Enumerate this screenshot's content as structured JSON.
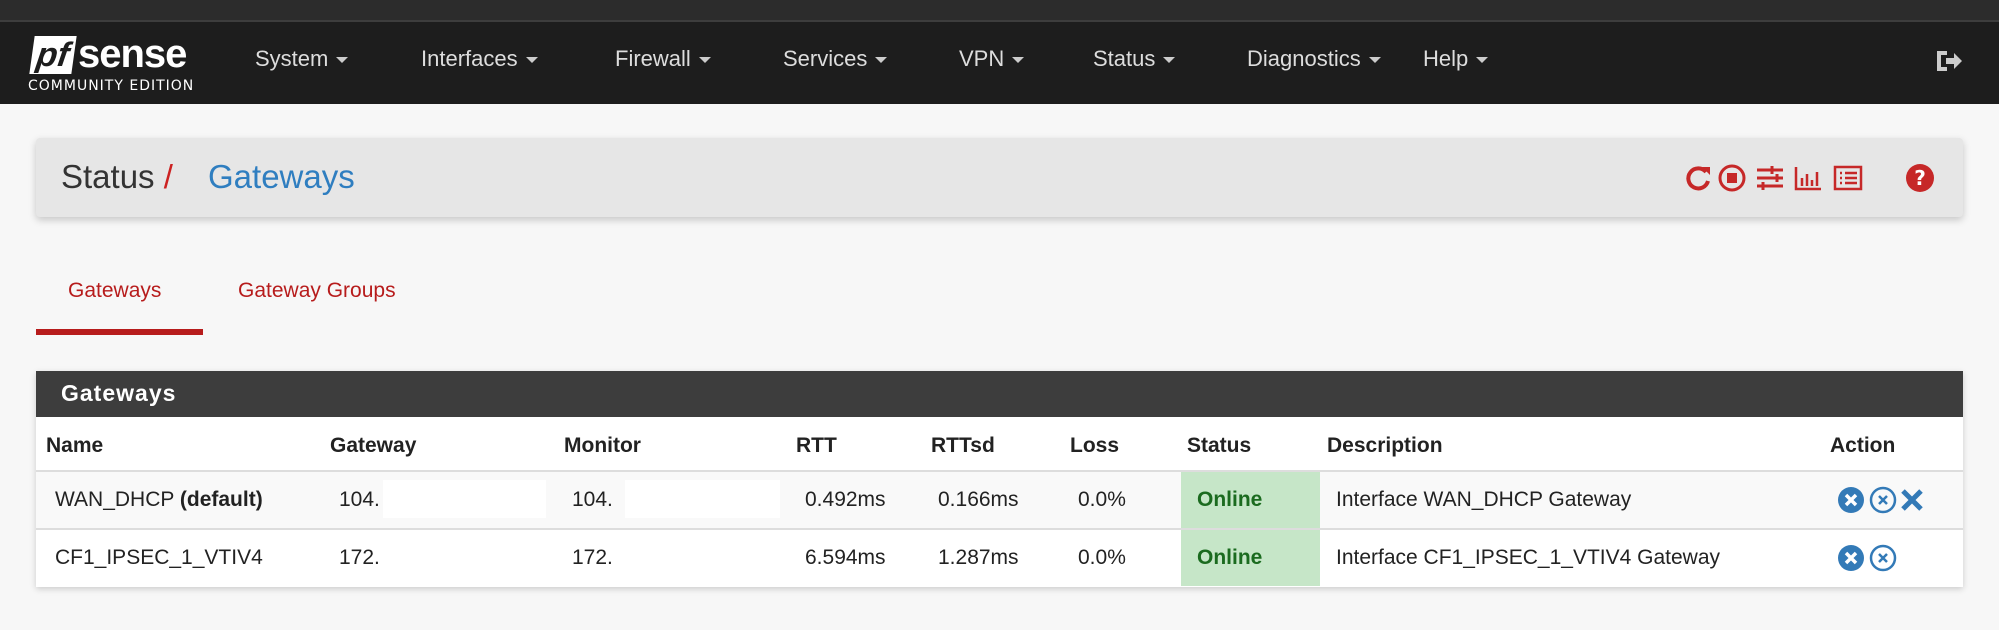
{
  "brand": {
    "logo_text": "pfsense",
    "edition": "COMMUNITY EDITION"
  },
  "nav": {
    "items": [
      "System",
      "Interfaces",
      "Firewall",
      "Services",
      "VPN",
      "Status",
      "Diagnostics",
      "Help"
    ]
  },
  "breadcrumb": {
    "parent": "Status",
    "separator": "/",
    "current": "Gateways"
  },
  "toolbar_icons": [
    "refresh-icon",
    "stop-icon",
    "sliders-icon",
    "chart-icon",
    "log-list-icon",
    "help-icon"
  ],
  "tabs": [
    {
      "label": "Gateways",
      "active": true
    },
    {
      "label": "Gateway Groups",
      "active": false
    }
  ],
  "panel": {
    "title": "Gateways",
    "columns": [
      "Name",
      "Gateway",
      "Monitor",
      "RTT",
      "RTTsd",
      "Loss",
      "Status",
      "Description",
      "Action"
    ],
    "rows": [
      {
        "name": "WAN_DHCP",
        "name_suffix": "(default)",
        "gateway": "104.",
        "monitor": "104.",
        "rtt": "0.492ms",
        "rttsd": "0.166ms",
        "loss": "0.0%",
        "status": "Online",
        "description": "Interface WAN_DHCP Gateway",
        "actions": [
          "mark-down-icon",
          "disable-icon",
          "reset-icon"
        ]
      },
      {
        "name": "CF1_IPSEC_1_VTIV4",
        "name_suffix": "",
        "gateway": "172.",
        "monitor": "172.",
        "rtt": "6.594ms",
        "rttsd": "1.287ms",
        "loss": "0.0%",
        "status": "Online",
        "description": "Interface CF1_IPSEC_1_VTIV4 Gateway",
        "actions": [
          "mark-down-icon",
          "disable-icon"
        ]
      }
    ]
  },
  "colors": {
    "accent": "#b71c1c",
    "link": "#2f7ec0",
    "online_bg": "#c6e6c8",
    "action": "#337ab7"
  }
}
